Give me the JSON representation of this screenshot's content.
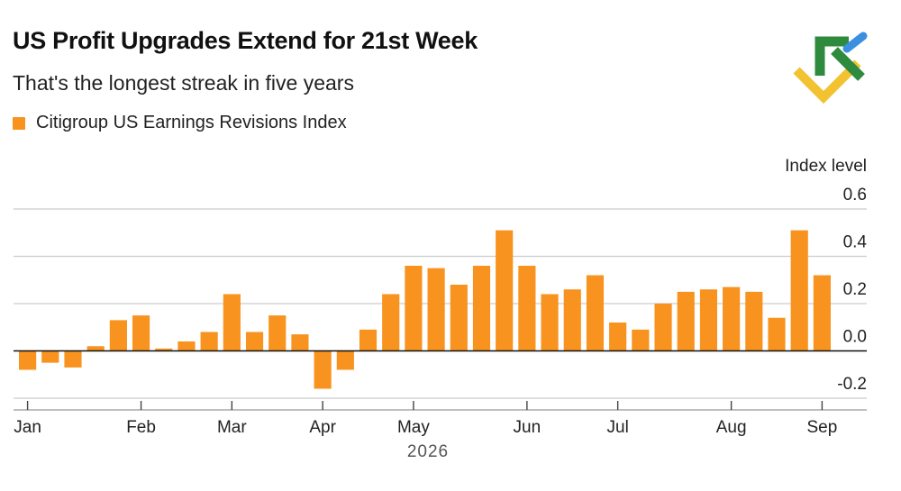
{
  "header": {
    "title": "US Profit Upgrades Extend for 21st Week",
    "subtitle": "That's the longest streak in five years"
  },
  "logo": {
    "icon": "brand-logo-icon",
    "colors": [
      "#2e8b3d",
      "#f2c230",
      "#3b8fe0"
    ]
  },
  "colors": {
    "bar": "#f7931e",
    "grid": "#cccccc",
    "axis": "#111111"
  },
  "chart_data": {
    "type": "bar",
    "legend": "top-left",
    "series": [
      {
        "name": "Citigroup US Earnings Revisions Index",
        "values": [
          -0.08,
          -0.05,
          -0.07,
          0.02,
          0.13,
          0.15,
          0.01,
          0.04,
          0.08,
          0.24,
          0.08,
          0.15,
          0.07,
          -0.16,
          -0.08,
          0.09,
          0.24,
          0.36,
          0.35,
          0.28,
          0.36,
          0.51,
          0.36,
          0.24,
          0.26,
          0.32,
          0.12,
          0.09,
          0.2,
          0.25,
          0.26,
          0.27,
          0.25,
          0.14,
          0.51,
          0.32
        ]
      }
    ],
    "ylabel": "Index level",
    "ylim": [
      -0.2,
      0.6
    ],
    "yticks": [
      {
        "value": 0.6,
        "label": "0.6"
      },
      {
        "value": 0.4,
        "label": "0.4"
      },
      {
        "value": 0.2,
        "label": "0.2"
      },
      {
        "value": 0.0,
        "label": "0.0"
      },
      {
        "value": -0.2,
        "label": "-0.2"
      }
    ],
    "xticks": [
      {
        "index": 0,
        "label": "Jan"
      },
      {
        "index": 5,
        "label": "Feb"
      },
      {
        "index": 9,
        "label": "Mar"
      },
      {
        "index": 13,
        "label": "Apr"
      },
      {
        "index": 17,
        "label": "May"
      },
      {
        "index": 22,
        "label": "Jun"
      },
      {
        "index": 26,
        "label": "Jul"
      },
      {
        "index": 31,
        "label": "Aug"
      },
      {
        "index": 35,
        "label": "Sep"
      }
    ],
    "xlabel": "2026",
    "grid": true
  }
}
